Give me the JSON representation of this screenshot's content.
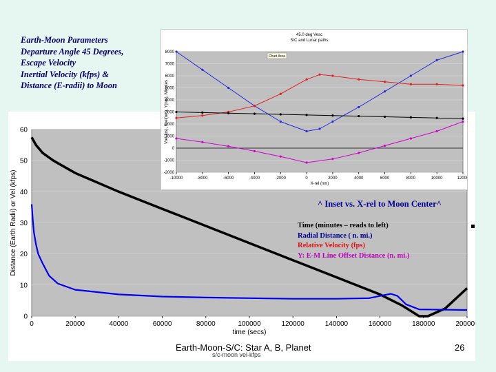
{
  "title_block": {
    "line1": "Earth-Moon Parameters",
    "line2": "Departure Angle 45 Degrees,",
    "line3": "Escape Velocity",
    "line4": "Inertial Velocity (kfps) &",
    "line5": "Distance (E-radii) to Moon"
  },
  "inset_caption": "^ Inset vs. X-rel to Moon Center^",
  "annotation_legend": [
    {
      "text": "Time (minutes – reads to left)",
      "color": "#000000"
    },
    {
      "text": "Radial Distance ( n. mi.)",
      "color": "#00009a"
    },
    {
      "text": "Relative Velocity (fps)",
      "color": "#e01010"
    },
    {
      "text": "Y: E-M Line Offset Distance (n. mi.)",
      "color": "#c000c0"
    }
  ],
  "footer": {
    "center_text": "Earth-Moon-S/C: Star A, B, Planet",
    "page_number": "26",
    "legend_remnant": "s/c-moon   vel-kfps"
  },
  "chart_data": [
    {
      "type": "line",
      "xlabel": "time (secs)",
      "ylabel": "Distance (Earth Radii) or Vel (kfps)",
      "xlim": [
        0,
        200000
      ],
      "ylim": [
        0,
        60
      ],
      "x_ticks": [
        "0",
        "20000",
        "40000",
        "60000",
        "80000",
        "100000",
        "120000",
        "140000",
        "160000",
        "180000",
        "200000"
      ],
      "y_ticks": [
        "0",
        "10",
        "20",
        "30",
        "40",
        "50",
        "60"
      ],
      "grid": true,
      "plot_background": "#c0c0c0",
      "series": [
        {
          "name": "s/c-moon",
          "color": "#000000",
          "points": [
            [
              0,
              57.5
            ],
            [
              2000,
              55
            ],
            [
              5000,
              52.5
            ],
            [
              10000,
              50
            ],
            [
              20000,
              46
            ],
            [
              40000,
              40
            ],
            [
              60000,
              34.5
            ],
            [
              80000,
              29
            ],
            [
              100000,
              23.5
            ],
            [
              120000,
              18
            ],
            [
              140000,
              12.5
            ],
            [
              160000,
              7
            ],
            [
              170000,
              3.5
            ],
            [
              178000,
              0
            ],
            [
              182000,
              0
            ],
            [
              190000,
              2.5
            ],
            [
              200000,
              9
            ]
          ]
        },
        {
          "name": "vel-kfps",
          "color": "#0000ee",
          "points": [
            [
              0,
              36
            ],
            [
              500,
              31
            ],
            [
              1000,
              27
            ],
            [
              2000,
              23
            ],
            [
              3000,
              20
            ],
            [
              5000,
              17
            ],
            [
              8000,
              13
            ],
            [
              12000,
              10.5
            ],
            [
              20000,
              8.5
            ],
            [
              40000,
              7
            ],
            [
              60000,
              6.3
            ],
            [
              80000,
              6
            ],
            [
              100000,
              5.8
            ],
            [
              120000,
              5.6
            ],
            [
              140000,
              5.6
            ],
            [
              155000,
              5.8
            ],
            [
              160000,
              6.5
            ],
            [
              165000,
              7.2
            ],
            [
              168000,
              6.5
            ],
            [
              172000,
              3.8
            ],
            [
              178000,
              2.2
            ],
            [
              200000,
              2
            ]
          ]
        }
      ]
    },
    {
      "type": "line",
      "title": "45.0 deg Vesc",
      "subtitle": "S/C and Lunar paths",
      "xlabel": "X-rel (nm)",
      "ylabel": "Vrel(fps), Rrel(nm), Y(nm), Minutes",
      "xlim": [
        -10000,
        12000
      ],
      "ylim": [
        -2000,
        8000
      ],
      "x_ticks": [
        "-10000",
        "-8000",
        "-6000",
        "-4000",
        "-2000",
        "0",
        "2000",
        "4000",
        "6000",
        "8000",
        "10000",
        "12000"
      ],
      "y_ticks": [
        "8000",
        "7000",
        "6000",
        "5000",
        "4000",
        "3000",
        "2000",
        "1000",
        "0",
        "-1000",
        "-2000"
      ],
      "chart_area_label": "Chart Area",
      "grid": true,
      "plot_background": "#c0c0c0",
      "series": [
        {
          "name": "Radial Distance",
          "color": "#2a2ae0",
          "points": [
            [
              -10000,
              8000
            ],
            [
              -8000,
              6500
            ],
            [
              -6000,
              5000
            ],
            [
              -4000,
              3500
            ],
            [
              -2000,
              2200
            ],
            [
              0,
              1400
            ],
            [
              1000,
              1600
            ],
            [
              2000,
              2200
            ],
            [
              4000,
              3400
            ],
            [
              6000,
              4700
            ],
            [
              8000,
              6000
            ],
            [
              10000,
              7300
            ],
            [
              12000,
              8000
            ]
          ]
        },
        {
          "name": "Relative Velocity",
          "color": "#e02020",
          "points": [
            [
              -10000,
              2500
            ],
            [
              -8000,
              2700
            ],
            [
              -6000,
              3000
            ],
            [
              -4000,
              3500
            ],
            [
              -2000,
              4500
            ],
            [
              0,
              5700
            ],
            [
              1000,
              6100
            ],
            [
              2000,
              6000
            ],
            [
              4000,
              5700
            ],
            [
              6000,
              5500
            ],
            [
              8000,
              5300
            ],
            [
              10000,
              5300
            ],
            [
              12000,
              5200
            ]
          ]
        },
        {
          "name": "Time",
          "color": "#000000",
          "points": [
            [
              -10000,
              3000
            ],
            [
              -8000,
              2950
            ],
            [
              -6000,
              2900
            ],
            [
              -4000,
              2850
            ],
            [
              -2000,
              2800
            ],
            [
              0,
              2750
            ],
            [
              2000,
              2700
            ],
            [
              4000,
              2650
            ],
            [
              6000,
              2600
            ],
            [
              8000,
              2550
            ],
            [
              10000,
              2500
            ],
            [
              12000,
              2450
            ]
          ]
        },
        {
          "name": "Y Offset",
          "color": "#d000d0",
          "points": [
            [
              -10000,
              800
            ],
            [
              -8000,
              500
            ],
            [
              -6000,
              150
            ],
            [
              -4000,
              -250
            ],
            [
              -2000,
              -700
            ],
            [
              0,
              -1200
            ],
            [
              2000,
              -900
            ],
            [
              4000,
              -400
            ],
            [
              6000,
              200
            ],
            [
              8000,
              800
            ],
            [
              10000,
              1400
            ],
            [
              12000,
              2200
            ]
          ]
        }
      ]
    }
  ]
}
